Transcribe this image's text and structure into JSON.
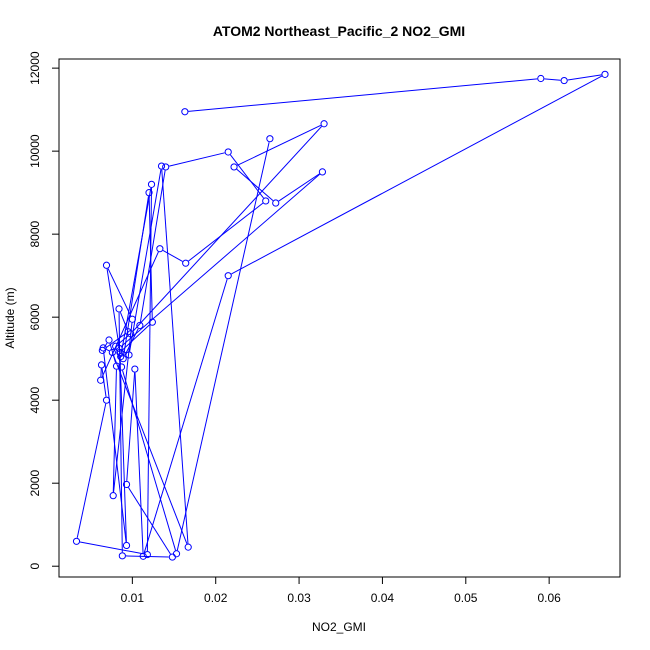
{
  "chart_data": {
    "type": "line",
    "title": "ATOM2 Northeast_Pacific_2 NO2_GMI",
    "xlabel": "NO2_GMI",
    "ylabel": "Altitude (m)",
    "xlim": [
      0.0012,
      0.0685
    ],
    "ylim": [
      -260,
      12220
    ],
    "x_ticks": [
      0.01,
      0.02,
      0.03,
      0.04,
      0.05,
      0.06
    ],
    "x_tick_labels": [
      "0.01",
      "0.02",
      "0.03",
      "0.04",
      "0.05",
      "0.06"
    ],
    "y_ticks": [
      0,
      2000,
      4000,
      6000,
      8000,
      10000,
      12000
    ],
    "y_tick_labels": [
      "0",
      "2000",
      "4000",
      "6000",
      "8000",
      "10000",
      "12000"
    ],
    "grid": false,
    "legend": "none",
    "series_color": "#0000ff",
    "series": [
      {
        "x": [
          0.0163,
          0.059,
          0.0618,
          0.0667,
          0.0215,
          0.0113,
          0.0103,
          0.0093,
          0.0148,
          0.0088,
          0.0084,
          0.0095,
          0.0064,
          0.0072,
          0.0081,
          0.0077,
          0.01,
          0.0069,
          0.0086,
          0.0123,
          0.0118,
          0.0033,
          0.0069,
          0.0063,
          0.0062,
          0.0133,
          0.0164,
          0.026,
          0.0215,
          0.014,
          0.0109,
          0.0089,
          0.012,
          0.0124,
          0.0085,
          0.0093,
          0.0065,
          0.0076,
          0.0167,
          0.0135,
          0.0096,
          0.0084,
          0.0328,
          0.0272,
          0.0222,
          0.033,
          0.0098,
          0.008,
          0.0087,
          0.0153,
          0.0265
        ],
        "y": [
          10950,
          11750,
          11700,
          11850,
          7000,
          240,
          4750,
          1970,
          220,
          250,
          6200,
          5650,
          5200,
          5450,
          4820,
          1700,
          5950,
          7250,
          5050,
          9200,
          280,
          600,
          4000,
          4850,
          4480,
          7650,
          7300,
          8800,
          9980,
          9620,
          5800,
          5000,
          9000,
          5880,
          5150,
          500,
          5260,
          5150,
          460,
          9640,
          5090,
          5250,
          9500,
          8750,
          9620,
          10660,
          5600,
          5300,
          4800,
          300,
          10300
        ]
      }
    ]
  }
}
